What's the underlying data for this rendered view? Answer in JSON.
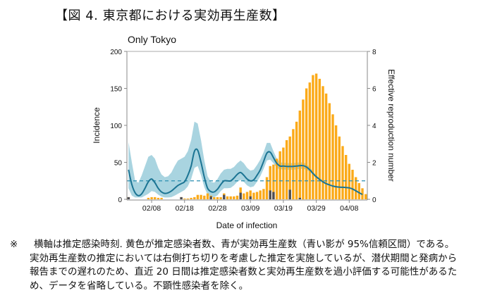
{
  "figure_title": "【図 4.  東京都における実効再生産数】",
  "note": {
    "mark": "※",
    "lines": [
      "横軸は推定感染時刻. 黄色が推定感染者数、青が実効再生産数（青い影が 95%信頼区間）である。",
      "実効再生産数の推定においては右側打ち切りを考慮した推定を実施しているが、潜伏期間と発病から",
      "報告までの遅れのため、直近 20 日間は推定感染者数と実効再生産数を過小評価する可能性があるた",
      "め、データを省略している。不顕性感染者を除く。"
    ]
  },
  "colors": {
    "incidence_bar": "#FBAA19",
    "imported_bar": "#4D4D55",
    "rt_line": "#1B7493",
    "ci_band": "#9ACDDB",
    "threshold": "#2A8FB0",
    "axis": "#888888"
  },
  "chart_data": {
    "type": "bar+line",
    "title": "Only Tokyo",
    "xlabel": "Date of infection",
    "ylabel": "Incidence",
    "y2label": "Effective reproduction number",
    "ylim": [
      0,
      200
    ],
    "y2lim": [
      0,
      8
    ],
    "yticks": [
      0,
      50,
      100,
      150,
      200
    ],
    "y2ticks": [
      0,
      2,
      4,
      6,
      8
    ],
    "xtick_labels": [
      "02/08",
      "02/18",
      "02/28",
      "03/09",
      "03/19",
      "03/29",
      "04/08"
    ],
    "xtick_day_index": [
      7,
      17,
      27,
      37,
      47,
      57,
      67
    ],
    "start_date": "02/01",
    "threshold_rt": 1,
    "legend": "none",
    "grid": false,
    "series": [
      {
        "name": "Estimated incidence",
        "kind": "bar",
        "values": [
          3,
          0,
          0,
          0,
          0,
          0,
          2,
          3,
          3,
          2,
          2,
          0,
          0,
          0,
          0,
          0,
          3,
          1,
          1,
          2,
          3,
          6,
          6,
          5,
          8,
          5,
          3,
          3,
          3,
          8,
          4,
          4,
          4,
          5,
          16,
          8,
          10,
          12,
          9,
          10,
          12,
          14,
          30,
          45,
          47,
          55,
          65,
          70,
          80,
          85,
          95,
          105,
          120,
          135,
          150,
          158,
          168,
          170,
          163,
          153,
          143,
          130,
          115,
          100,
          85,
          72,
          60,
          48,
          40,
          30,
          22,
          15,
          7
        ],
        "dark_values": [
          3,
          0,
          0,
          0,
          0,
          0,
          0,
          0,
          0,
          0,
          0,
          0,
          0,
          0,
          0,
          0,
          3,
          0,
          0,
          0,
          0,
          0,
          0,
          0,
          0,
          4,
          0,
          0,
          0,
          6,
          0,
          0,
          0,
          0,
          9,
          0,
          0,
          4,
          0,
          0,
          0,
          0,
          0,
          12,
          10,
          0,
          0,
          0,
          0,
          13,
          0,
          0,
          2,
          0,
          0,
          0,
          0,
          0,
          0,
          0,
          0,
          0,
          0,
          0,
          0,
          0,
          0,
          0,
          0,
          0,
          0,
          0,
          0
        ]
      },
      {
        "name": "Effective reproduction number",
        "kind": "line",
        "values": [
          1.6,
          0.8,
          0.35,
          0.2,
          0.3,
          0.6,
          0.95,
          1.1,
          0.9,
          0.6,
          0.4,
          0.32,
          0.35,
          0.45,
          0.6,
          0.75,
          0.85,
          0.95,
          1.3,
          1.8,
          2.6,
          2.65,
          2.0,
          1.2,
          0.6,
          0.42,
          0.4,
          0.55,
          0.8,
          1.0,
          1.0,
          1.0,
          1.15,
          1.35,
          1.45,
          1.3,
          1.1,
          1.0,
          1.05,
          1.3,
          1.6,
          2.05,
          2.5,
          2.55,
          2.25,
          1.95,
          1.8,
          1.8,
          1.78,
          1.78,
          1.78,
          1.8,
          1.82,
          1.82,
          1.75,
          1.6,
          1.4,
          1.22,
          1.08,
          0.95,
          0.85,
          0.78,
          0.72,
          0.68,
          0.66,
          0.65,
          0.64,
          0.62,
          0.56,
          0.46,
          0.36,
          0.26
        ]
      },
      {
        "name": "95% CI lower",
        "kind": "band-lower",
        "values": [
          0.6,
          0.2,
          0.1,
          0.1,
          0.1,
          0.2,
          0.3,
          0.45,
          0.4,
          0.25,
          0.15,
          0.1,
          0.1,
          0.12,
          0.2,
          0.3,
          0.4,
          0.5,
          0.7,
          1.1,
          1.7,
          1.8,
          1.3,
          0.65,
          0.25,
          0.12,
          0.12,
          0.22,
          0.45,
          0.6,
          0.6,
          0.62,
          0.75,
          0.95,
          1.05,
          0.95,
          0.75,
          0.65,
          0.7,
          0.95,
          1.25,
          1.65,
          2.1,
          2.15,
          1.95,
          1.7,
          1.62,
          1.62,
          1.6,
          1.6,
          1.6,
          1.62,
          1.65,
          1.65,
          1.6,
          1.5,
          1.32,
          1.15,
          1.02,
          0.9,
          0.8,
          0.74,
          0.69,
          0.65,
          0.63,
          0.62,
          0.61,
          0.59,
          0.53,
          0.43,
          0.33,
          0.23
        ]
      },
      {
        "name": "95% CI upper",
        "kind": "band-upper",
        "values": [
          3.1,
          2.0,
          1.0,
          0.9,
          1.3,
          1.8,
          2.3,
          2.4,
          2.2,
          1.7,
          1.35,
          1.2,
          1.25,
          1.45,
          1.8,
          2.1,
          2.2,
          2.3,
          2.6,
          3.2,
          4.2,
          4.1,
          3.2,
          2.1,
          1.25,
          0.95,
          0.9,
          1.1,
          1.4,
          1.6,
          1.65,
          1.65,
          1.75,
          1.95,
          2.1,
          1.95,
          1.7,
          1.55,
          1.6,
          1.85,
          2.15,
          2.55,
          3.05,
          3.05,
          2.6,
          2.2,
          2.0,
          1.98,
          1.96,
          1.96,
          1.96,
          1.98,
          2.0,
          2.0,
          1.92,
          1.72,
          1.5,
          1.3,
          1.14,
          1.0,
          0.9,
          0.82,
          0.75,
          0.71,
          0.69,
          0.68,
          0.67,
          0.65,
          0.59,
          0.49,
          0.39,
          0.29
        ]
      }
    ]
  }
}
